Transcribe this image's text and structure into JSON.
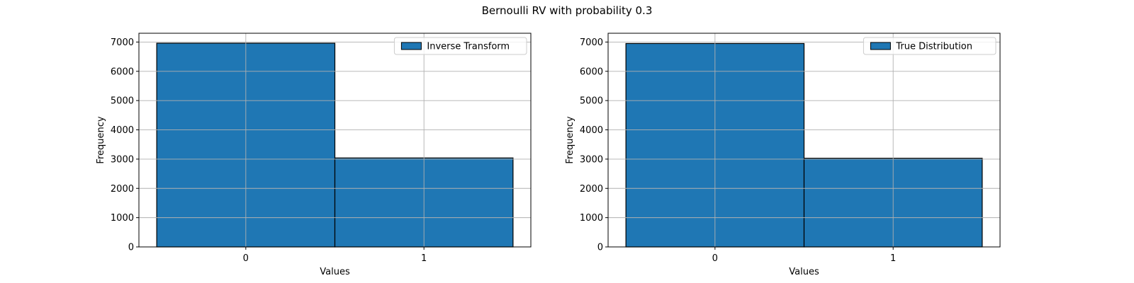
{
  "figure": {
    "suptitle": "Bernoulli RV with probability 0.3"
  },
  "chart_data": [
    {
      "type": "bar",
      "categories": [
        "0",
        "1"
      ],
      "bar_edges": [
        [
          -0.5,
          0.5
        ],
        [
          0.5,
          1.5
        ]
      ],
      "series": [
        {
          "name": "Inverse Transform",
          "values": [
            6960,
            3040
          ]
        }
      ],
      "xlabel": "Values",
      "ylabel": "Frequency",
      "xlim": [
        -0.6,
        1.6
      ],
      "ylim": [
        0,
        7300
      ],
      "yticks": [
        0,
        1000,
        2000,
        3000,
        4000,
        5000,
        6000,
        7000
      ],
      "xticks": [
        0,
        1
      ],
      "grid": true,
      "legend": "upper right",
      "bar_color": "#1f77b4",
      "edge_color": "#000000"
    },
    {
      "type": "bar",
      "categories": [
        "0",
        "1"
      ],
      "bar_edges": [
        [
          -0.5,
          0.5
        ],
        [
          0.5,
          1.5
        ]
      ],
      "series": [
        {
          "name": "True Distribution",
          "values": [
            6950,
            3030
          ]
        }
      ],
      "xlabel": "Values",
      "ylabel": "Frequency",
      "xlim": [
        -0.6,
        1.6
      ],
      "ylim": [
        0,
        7300
      ],
      "yticks": [
        0,
        1000,
        2000,
        3000,
        4000,
        5000,
        6000,
        7000
      ],
      "xticks": [
        0,
        1
      ],
      "grid": true,
      "legend": "upper right",
      "bar_color": "#1f77b4",
      "edge_color": "#000000"
    }
  ]
}
